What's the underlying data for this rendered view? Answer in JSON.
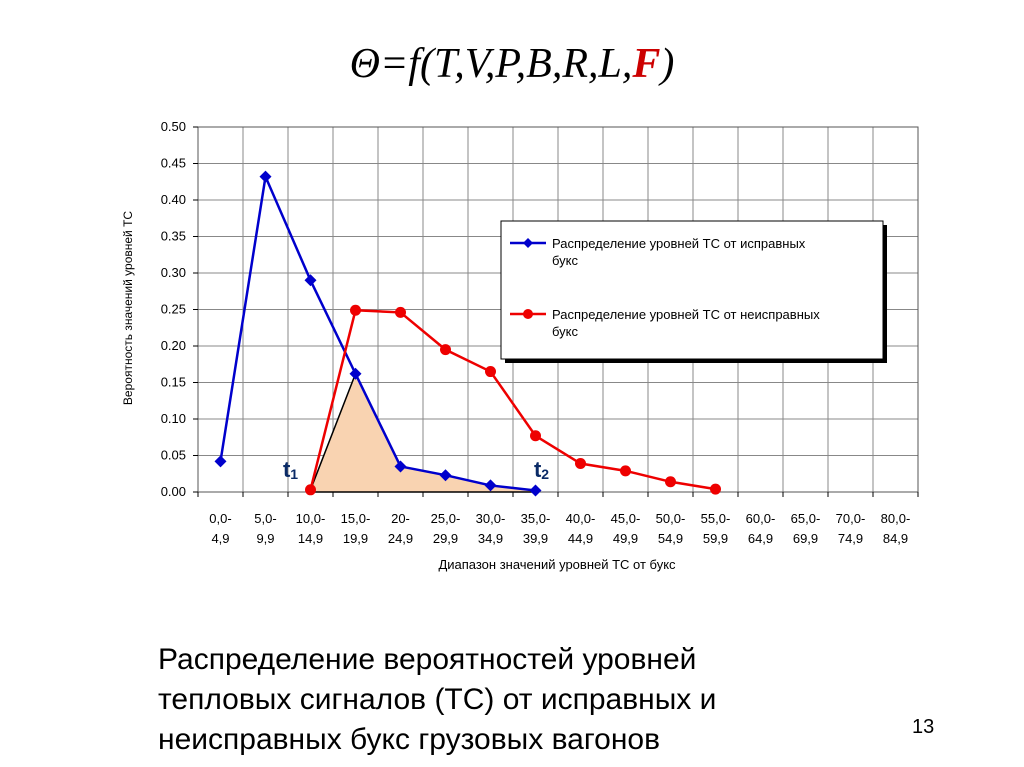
{
  "slide": {
    "formula_main": "Θ=f(T,V,P,B,R,L,",
    "formula_highlight": "F",
    "formula_end": ")",
    "caption_lines": [
      "Распределение вероятностей  уровней",
      "тепловых сигналов (ТС)  от исправных и",
      "неисправных букс грузовых вагонов"
    ],
    "page_number": "13"
  },
  "colors": {
    "series_good": "#0000cc",
    "series_bad": "#ee0000",
    "fill_overlap": "#f9d3b1",
    "grid": "#888888"
  },
  "chart_data": {
    "type": "line",
    "title": "",
    "xlabel": "Диапазон значений уровней ТС от букс",
    "ylabel": "Вероятность значений уровней ТС",
    "ylim": [
      0,
      0.5
    ],
    "yticks": [
      "0.00",
      "0.05",
      "0.10",
      "0.15",
      "0.20",
      "0.25",
      "0.30",
      "0.35",
      "0.40",
      "0.45",
      "0.50"
    ],
    "categories": [
      [
        "0,0-",
        "4,9"
      ],
      [
        "5,0-",
        "9,9"
      ],
      [
        "10,0-",
        "14,9"
      ],
      [
        "15,0-",
        "19,9"
      ],
      [
        "20-",
        "24,9"
      ],
      [
        "25,0-",
        "29,9"
      ],
      [
        "30,0-",
        "34,9"
      ],
      [
        "35,0-",
        "39,9"
      ],
      [
        "40,0-",
        "44,9"
      ],
      [
        "45,0-",
        "49,9"
      ],
      [
        "50,0-",
        "54,9"
      ],
      [
        "55,0-",
        "59,9"
      ],
      [
        "60,0-",
        "64,9"
      ],
      [
        "65,0-",
        "69,9"
      ],
      [
        "70,0-",
        "74,9"
      ],
      [
        "80,0-",
        "84,9"
      ]
    ],
    "series": [
      {
        "name": "Распределение уровней ТС от исправных букс",
        "marker": "diamond",
        "values": [
          0.042,
          0.432,
          0.29,
          0.162,
          0.035,
          0.023,
          0.009,
          0.002,
          null,
          null,
          null,
          null,
          null,
          null,
          null,
          null
        ]
      },
      {
        "name": "Распределение уровней ТС от неисправных букс",
        "marker": "circle",
        "values": [
          null,
          null,
          0.003,
          0.249,
          0.246,
          0.195,
          0.165,
          0.077,
          0.039,
          0.029,
          0.014,
          0.004,
          null,
          null,
          null,
          null
        ]
      }
    ],
    "grid": true,
    "legend_position": "right",
    "annotations": [
      {
        "label": "t",
        "sub": "1",
        "category_index": 2
      },
      {
        "label": "t",
        "sub": "2",
        "category_index": 7
      }
    ]
  }
}
